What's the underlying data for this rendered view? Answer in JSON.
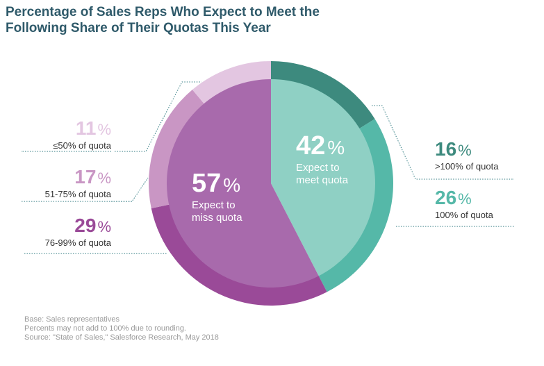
{
  "title": [
    "Percentage of Sales Reps Who Expect to Meet the",
    "Following Share of Their Quotas This Year"
  ],
  "colors": {
    "meet_inner": "#8fd0c4",
    "miss_inner": "#a86aac",
    "lt50": "#e3c6e1",
    "r51_75": "#c996c4",
    "r76_99": "#9a4a98",
    "gt100": "#3d8a7e",
    "eq100": "#55b8a8",
    "title": "#2f5a6a"
  },
  "chart_data": {
    "type": "pie",
    "inner": [
      {
        "name": "Expect to meet quota",
        "value": 42
      },
      {
        "name": "Expect to miss quota",
        "value": 57
      }
    ],
    "outer": [
      {
        "label": ">100% of quota",
        "value": 16
      },
      {
        "label": "100% of quota",
        "value": 26
      },
      {
        "label": "76-99% of quota",
        "value": 29
      },
      {
        "label": "51-75% of quota",
        "value": 17
      },
      {
        "label": "≤50% of quota",
        "value": 11
      }
    ]
  },
  "labels": {
    "meet_pct": "42",
    "meet_line1": "Expect to",
    "meet_line2": "meet quota",
    "miss_pct": "57",
    "miss_line1": "Expect to",
    "miss_line2": "miss quota",
    "pct_sign": "%",
    "lt50_pct": "11",
    "lt50_label": "≤50% of quota",
    "r51_75_pct": "17",
    "r51_75_label": "51-75% of quota",
    "r76_99_pct": "29",
    "r76_99_label": "76-99% of quota",
    "gt100_pct": "16",
    "gt100_label": ">100% of quota",
    "eq100_pct": "26",
    "eq100_label": "100% of quota"
  },
  "footnote": [
    "Base: Sales representatives",
    "Percents may not add to 100% due to rounding.",
    "Source: \"State of Sales,\" Salesforce Research, May 2018"
  ]
}
